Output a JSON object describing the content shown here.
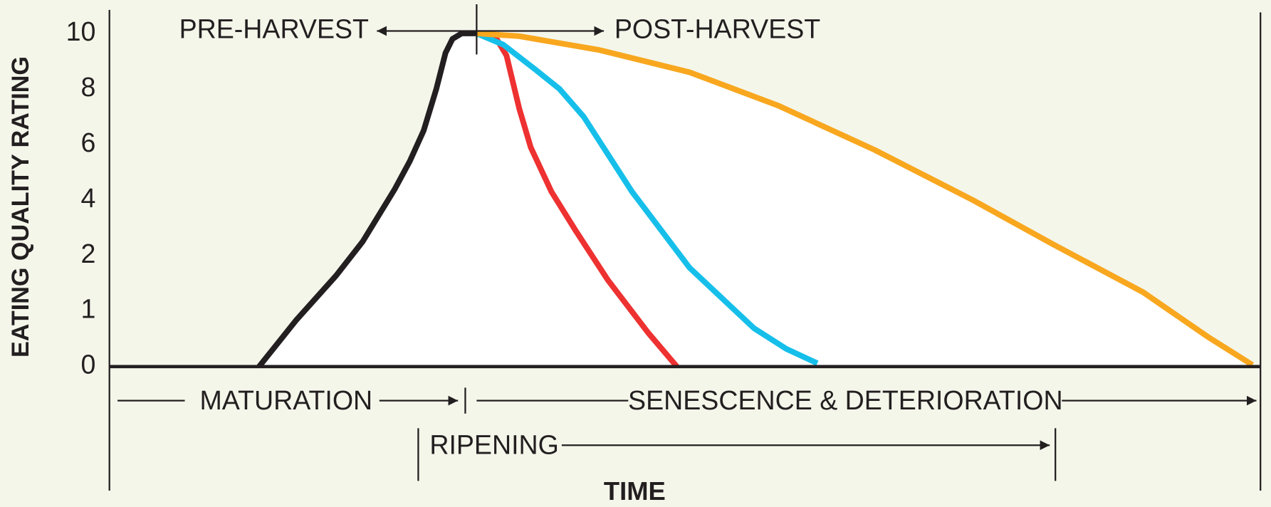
{
  "chart_data": {
    "type": "line",
    "xlabel": "TIME",
    "ylabel": "EATING QUALITY RATING",
    "annotations": [
      "PRE-HARVEST",
      "POST-HARVEST",
      "MATURATION",
      "SENESCENCE & DETERIORATION",
      "RIPENING"
    ],
    "xlim": [
      0,
      100
    ],
    "ylim": [
      0,
      10
    ],
    "yticks": [
      0,
      1,
      2,
      4,
      6,
      8,
      10
    ],
    "series": [
      {
        "color": "#231f20",
        "x": [
          13.0,
          16.2,
          19.7,
          22.0,
          24.8,
          26.1,
          27.3,
          28.4,
          29.2,
          29.8,
          30.6,
          31.9
        ],
        "values": [
          0,
          0.83,
          1.64,
          2.5,
          4.4,
          5.4,
          6.5,
          8.0,
          9.3,
          9.8,
          10,
          10
        ]
      },
      {
        "color": "#ee3131",
        "x": [
          31.9,
          33.5,
          34.5,
          35.6,
          36.6,
          38.4,
          40.5,
          43.3,
          46.8,
          49.3
        ],
        "values": [
          10,
          9.9,
          9.2,
          7.3,
          5.9,
          4.3,
          2.9,
          1.56,
          0.61,
          0
        ]
      },
      {
        "color": "#16bfea",
        "x": [
          31.9,
          34.2,
          37.0,
          39.1,
          41.2,
          42.6,
          45.4,
          50.4,
          56.0,
          58.8,
          61.5
        ],
        "values": [
          10,
          9.6,
          8.7,
          8.0,
          7.0,
          6.1,
          4.3,
          1.78,
          0.69,
          0.32,
          0.06
        ]
      },
      {
        "color": "#f8a71e",
        "x": [
          31.9,
          35.6,
          42.6,
          50.4,
          58.1,
          66.5,
          75.0,
          82.0,
          89.8,
          95.4,
          99.3
        ],
        "values": [
          10,
          9.9,
          9.4,
          8.6,
          7.4,
          5.8,
          4.0,
          2.4,
          1.34,
          0.54,
          0.03
        ]
      }
    ]
  }
}
